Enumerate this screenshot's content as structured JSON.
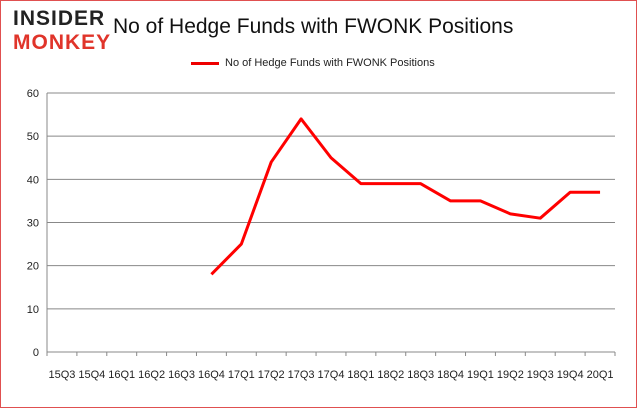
{
  "logo": {
    "line1": "INSIDER",
    "line2": "MONKEY"
  },
  "chart_data": {
    "type": "line",
    "title": "No of Hedge Funds with FWONK Positions",
    "xlabel": "",
    "ylabel": "",
    "ylim": [
      0,
      60
    ],
    "yticks": [
      0,
      10,
      20,
      30,
      40,
      50,
      60
    ],
    "grid": true,
    "legend_placement": "top-center",
    "categories": [
      "15Q3",
      "15Q4",
      "16Q1",
      "16Q2",
      "16Q3",
      "16Q4",
      "17Q1",
      "17Q2",
      "17Q3",
      "17Q4",
      "18Q1",
      "18Q2",
      "18Q3",
      "18Q4",
      "19Q1",
      "19Q2",
      "19Q3",
      "19Q4",
      "20Q1"
    ],
    "series": [
      {
        "name": "No of Hedge Funds with FWONK Positions",
        "color": "#ff0000",
        "values": [
          null,
          null,
          null,
          null,
          null,
          18,
          25,
          44,
          54,
          45,
          39,
          39,
          39,
          35,
          35,
          32,
          31,
          37,
          37
        ]
      }
    ]
  }
}
